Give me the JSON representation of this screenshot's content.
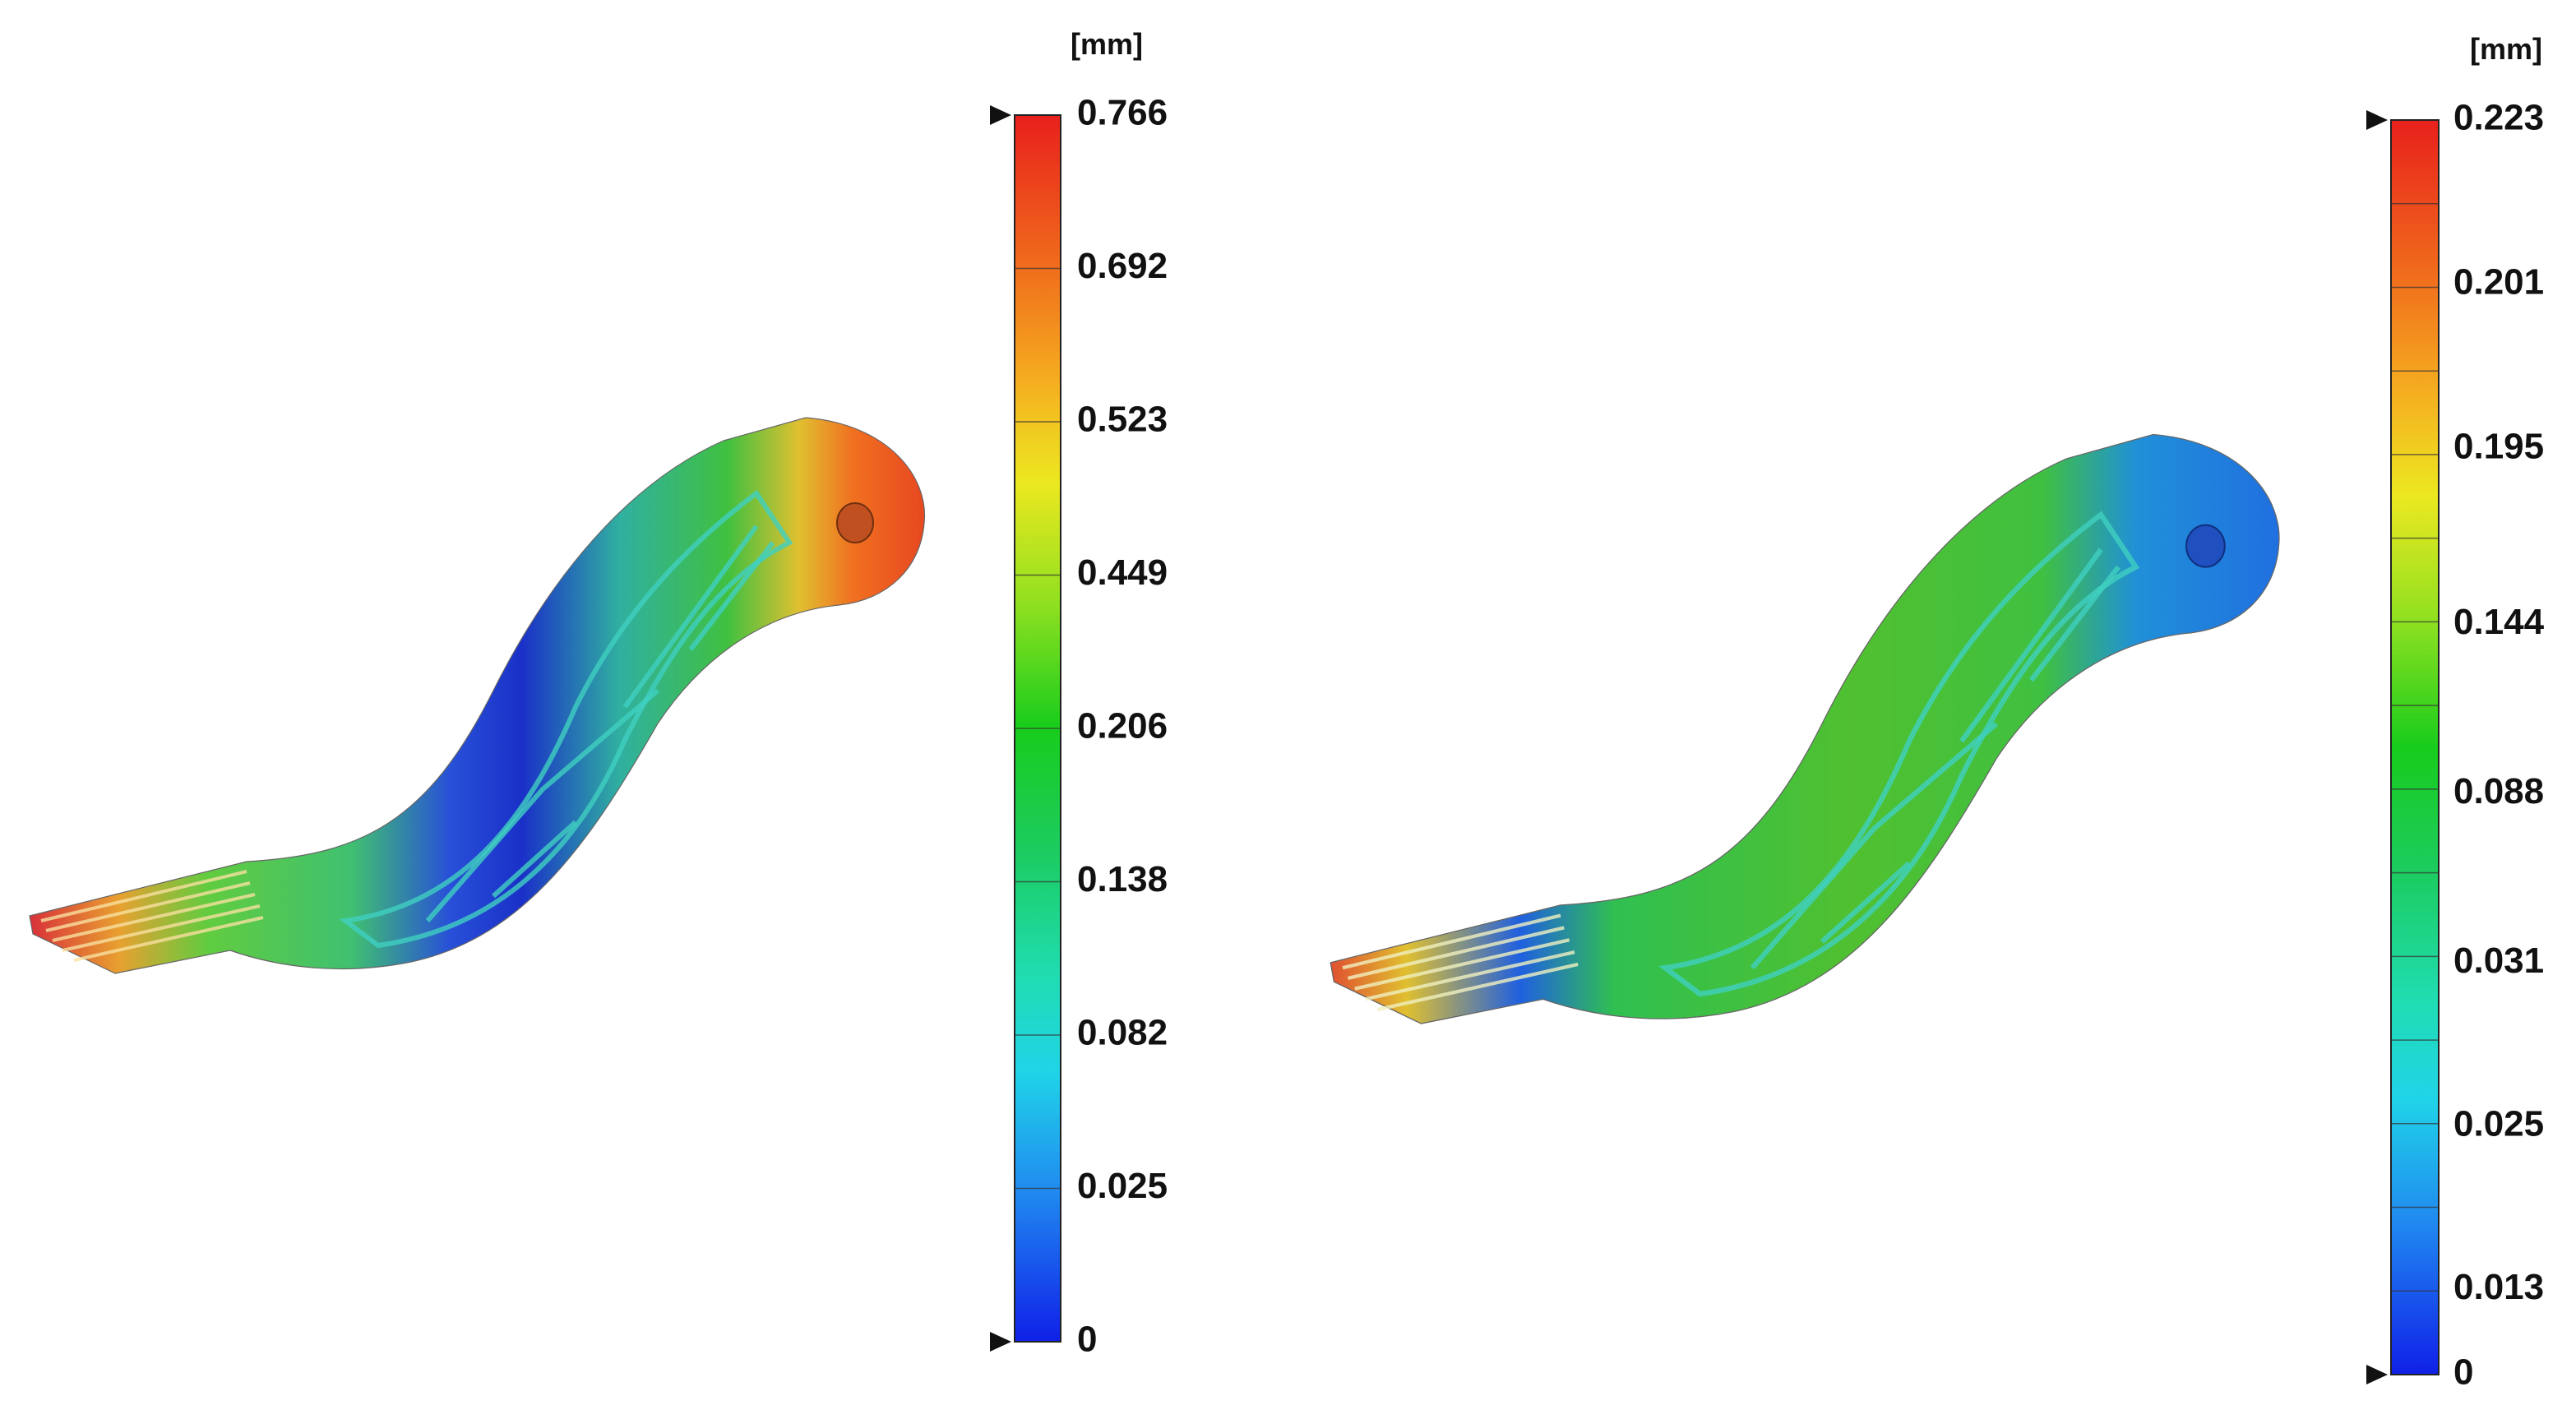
{
  "panels": [
    {
      "unit": "[mm]",
      "scale_labels": [
        "0.766",
        "0.692",
        "0.523",
        "0.449",
        "0.206",
        "0.138",
        "0.082",
        "0.025",
        "0"
      ]
    },
    {
      "unit": "[mm]",
      "scale_labels": [
        "0.223",
        "0.201",
        "0.195",
        "0.144",
        "0.088",
        "0.031",
        "0.025",
        "0.013",
        "0"
      ]
    }
  ]
}
